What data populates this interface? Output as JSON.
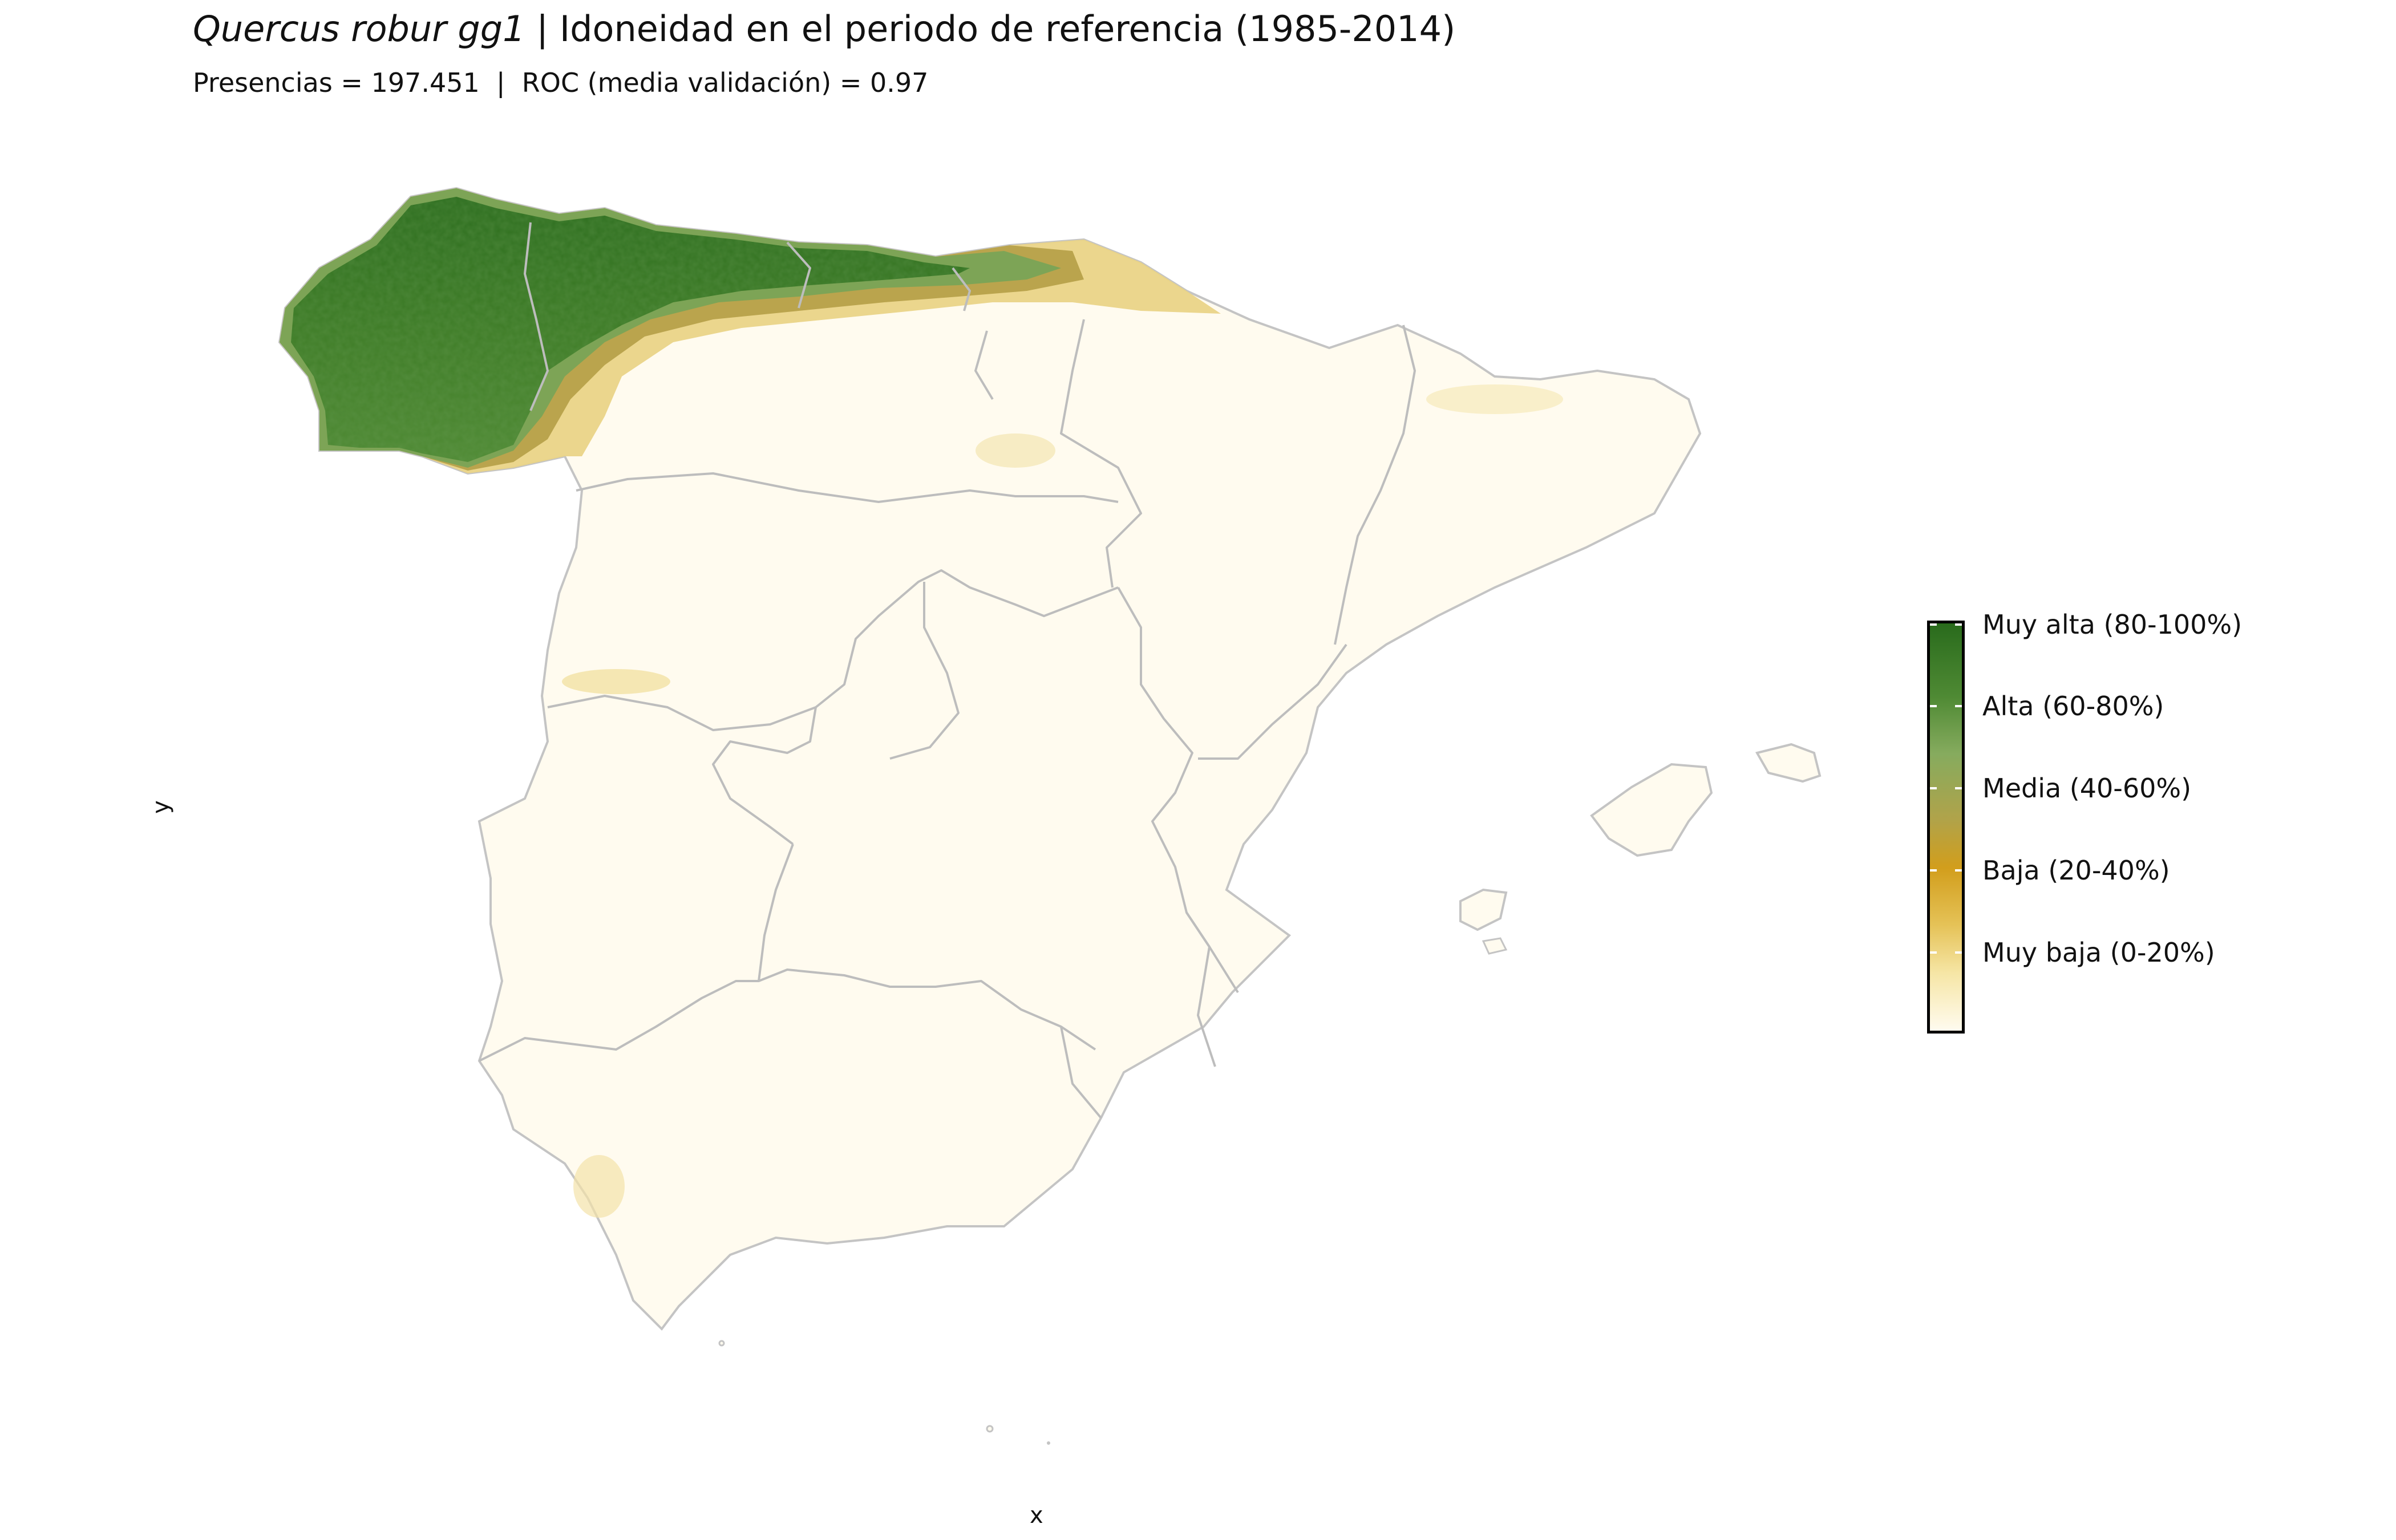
{
  "title": {
    "species": "Quercus robur gg1",
    "rest": "Idoneidad en el periodo de referencia (1985-2014)"
  },
  "subtitle": "Presencias = 197.451  |  ROC (media validación) = 0.97",
  "axes": {
    "x_label": "x",
    "y_label": "y"
  },
  "legend": {
    "items": [
      {
        "label": "Muy alta (80-100%)"
      },
      {
        "label": "Alta (60-80%)"
      },
      {
        "label": "Media (40-60%)"
      },
      {
        "label": "Baja (20-40%)"
      },
      {
        "label": "Muy baja (0-20%)"
      }
    ]
  },
  "colors": {
    "muy_alta": "#296b1c",
    "alta": "#86ab5e",
    "media": "#b0a34a",
    "baja": "#d29e1c",
    "muy_baja": "#f6e6a6",
    "base": "#fffbef",
    "borders": "#bdbdbd"
  }
}
